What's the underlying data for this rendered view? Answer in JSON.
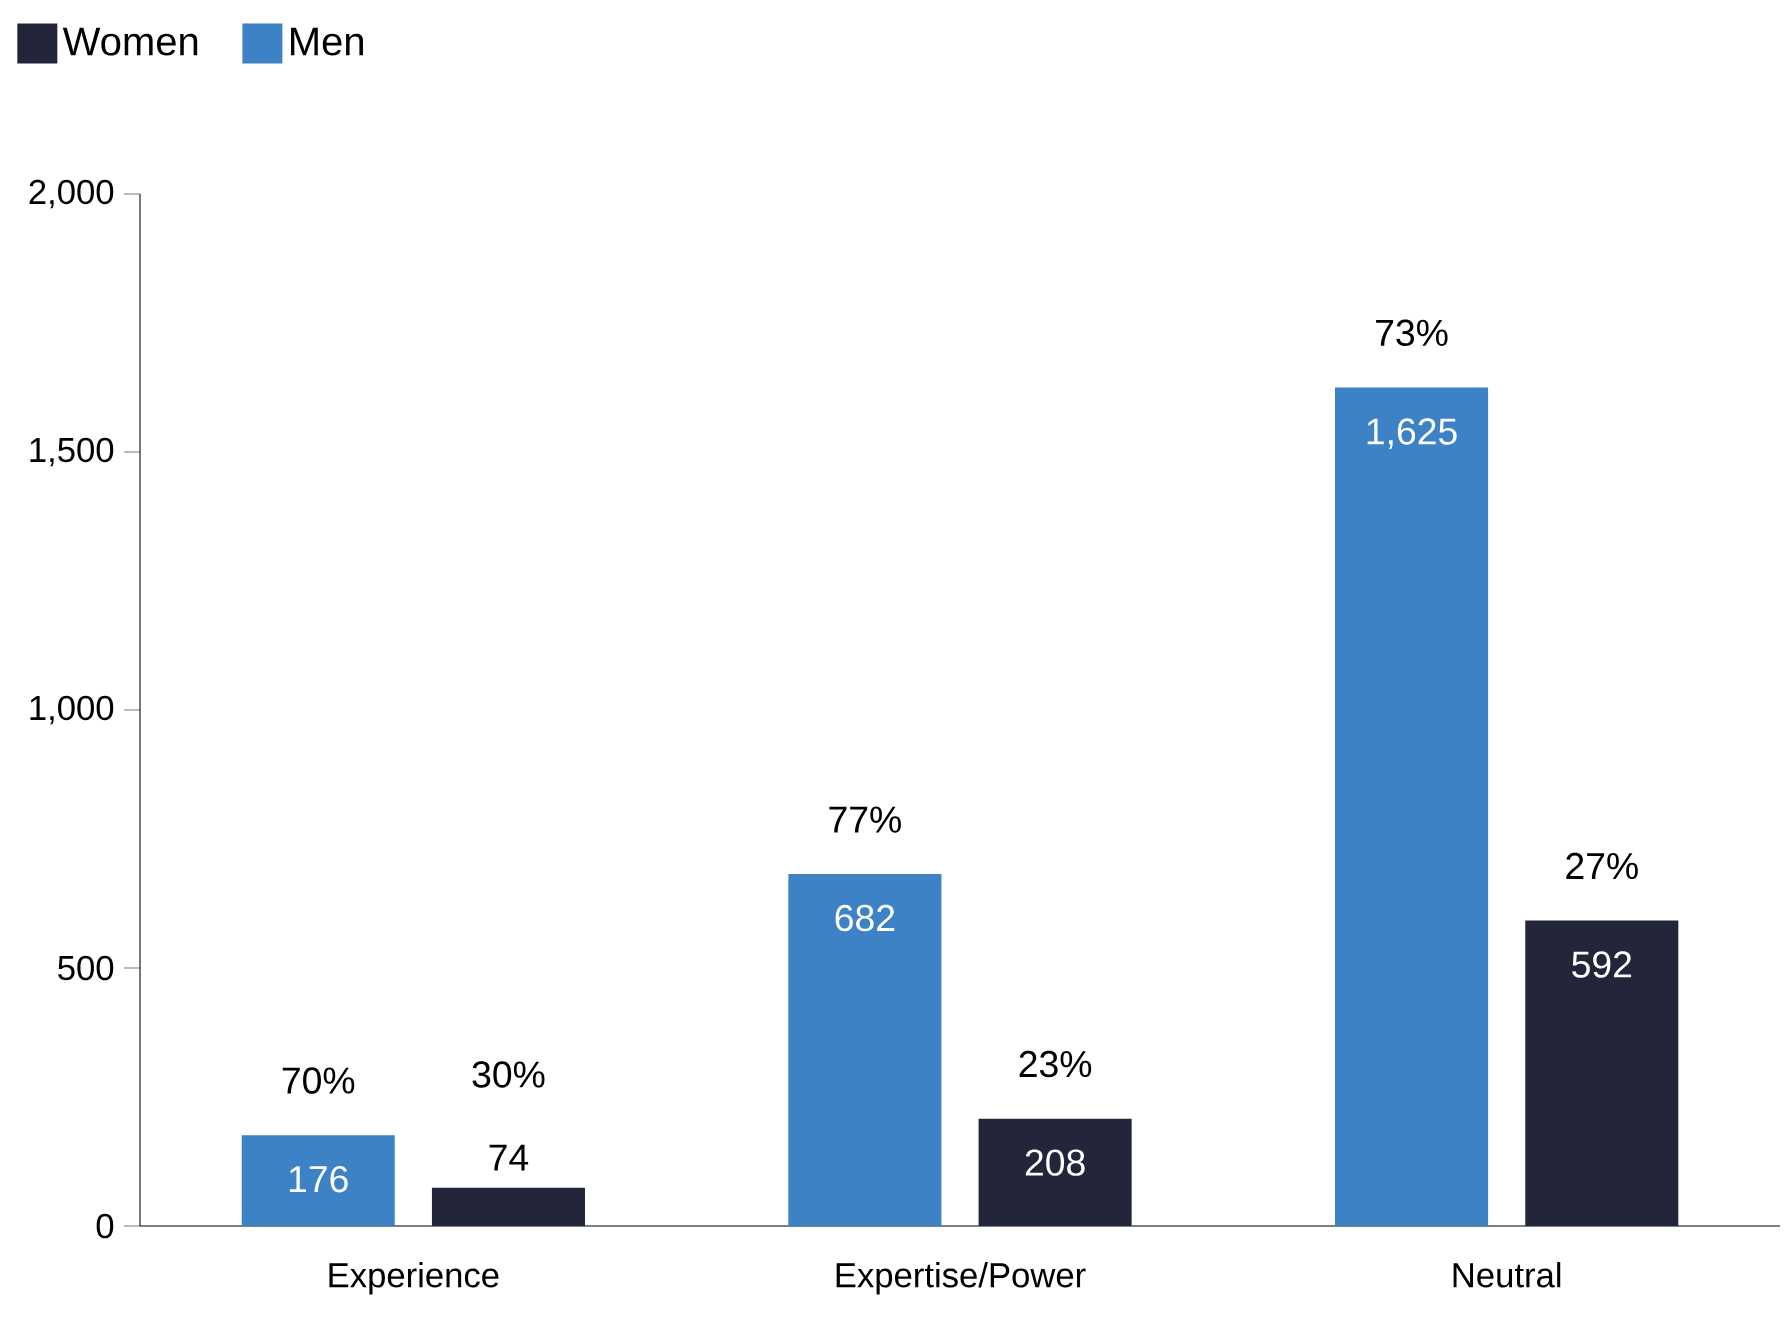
{
  "chart_data": {
    "type": "bar",
    "categories": [
      "Experience",
      "Expertise/Power",
      "Neutral"
    ],
    "series": [
      {
        "name": "Men",
        "color": "#3d82c4",
        "values": [
          176,
          682,
          1625
        ],
        "value_labels": [
          "176",
          "682",
          "1,625"
        ]
      },
      {
        "name": "Women",
        "color": "#23263b",
        "values": [
          74,
          208,
          592
        ],
        "value_labels": [
          "74",
          "208",
          "592"
        ]
      }
    ],
    "annotations": [
      "70%",
      "30%",
      "77%",
      "23%",
      "73%",
      "27%"
    ],
    "ylim": [
      0,
      2000
    ],
    "yticks": [
      0,
      {
        "value": 500,
        "label": "500"
      },
      {
        "value": 1000,
        "label": "1,000"
      },
      {
        "value": 1500,
        "label": "1,500"
      },
      {
        "value": 2000,
        "label": "2,000"
      }
    ],
    "legend": "top left"
  }
}
